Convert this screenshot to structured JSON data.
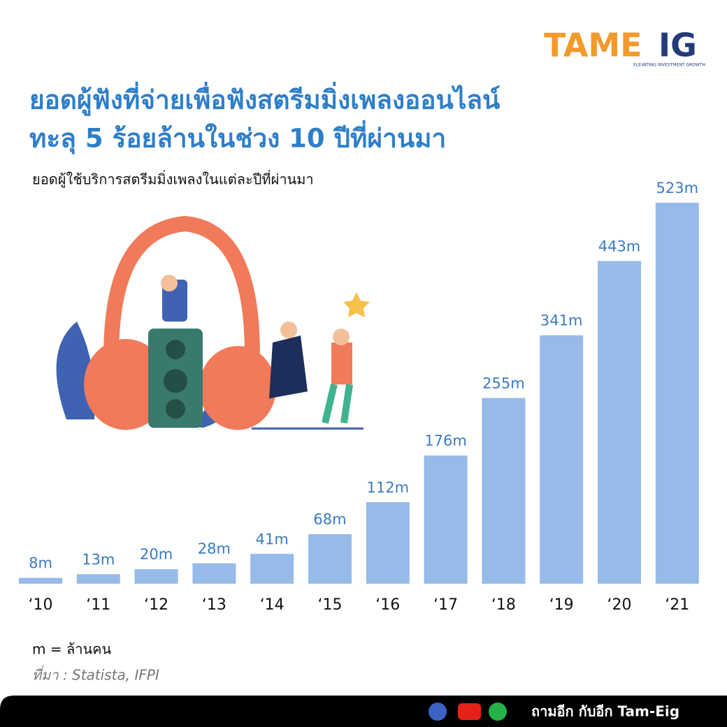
{
  "logo": {
    "left": "TAME",
    "right": "IG",
    "tagline": "ELEVATING INVESTMENT GROWTH"
  },
  "chart_data": {
    "type": "bar",
    "title": [
      "ยอดผู้ฟังที่จ่ายเพื่อฟังสตรีมมิ่งเพลงออนไลน์",
      "ทะลุ 5 ร้อยล้านในช่วง 10 ปีที่ผ่านมา"
    ],
    "subtitle": "ยอดผู้ใช้บริการสตรีมมิ่งเพลงในแต่ละปีที่ผ่านมา",
    "categories": [
      "‘10",
      "‘11",
      "‘12",
      "‘13",
      "‘14",
      "‘15",
      "‘16",
      "‘17",
      "‘18",
      "‘19",
      "‘20",
      "‘21"
    ],
    "values": [
      8,
      13,
      20,
      28,
      41,
      68,
      112,
      176,
      255,
      341,
      443,
      523
    ],
    "value_labels": [
      "8m",
      "13m",
      "20m",
      "28m",
      "41m",
      "68m",
      "112m",
      "176m",
      "255m",
      "341m",
      "443m",
      "523m"
    ],
    "color": "#97bbe8",
    "label_color": "#3a7bc0",
    "note": "m = ล้านคน",
    "source": "ที่มา : Statista, IFPI"
  },
  "footer": "ถามอีก กับอีก Tam-Eig"
}
